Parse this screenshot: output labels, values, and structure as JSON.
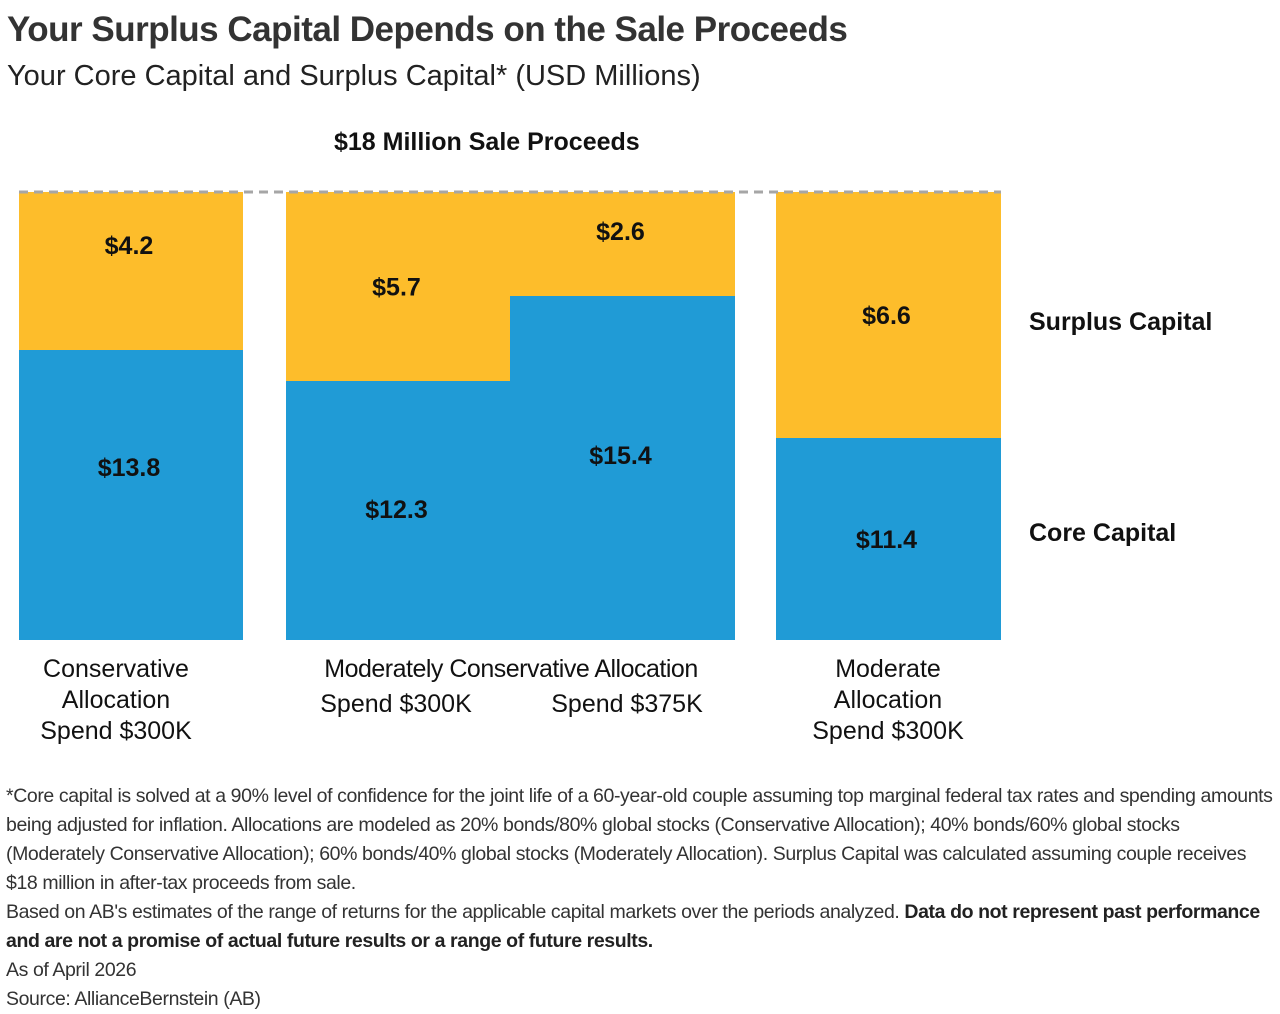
{
  "title": "Your Surplus Capital Depends on the Sale Proceeds",
  "subtitle": "Your Core Capital and Surplus Capital* (USD Millions)",
  "colors": {
    "surplus": "#FDBD2B",
    "core": "#209BD6",
    "dash": "#A6A6A6"
  },
  "chart_data": {
    "type": "bar",
    "stacked": true,
    "annotation": "$18 Million Sale Proceeds",
    "total": 18,
    "categories": [
      "Conservative Allocation Spend $300K",
      "Moderately Conservative Allocation Spend $300K",
      "Moderately Conservative Allocation Spend $375K",
      "Moderate Allocation Spend $300K"
    ],
    "series": [
      {
        "name": "Core Capital",
        "values": [
          13.8,
          12.3,
          15.4,
          11.4
        ],
        "labels": [
          "$13.8",
          "$12.3",
          "$15.4",
          "$11.4"
        ]
      },
      {
        "name": "Surplus Capital",
        "values": [
          4.2,
          5.7,
          2.6,
          6.6
        ],
        "labels": [
          "$4.2",
          "$5.7",
          "$2.6",
          "$6.6"
        ]
      }
    ],
    "legend": {
      "surplus": "Surplus Capital",
      "core": "Core Capital",
      "placement": "right"
    },
    "category_labels": {
      "cons": [
        "Conservative",
        "Allocation",
        "Spend $300K"
      ],
      "modcons_title": "Moderately Conservative Allocation",
      "modcons_a": "Spend $300K",
      "modcons_b": "Spend $375K",
      "mod": [
        "Moderate",
        "Allocation",
        "Spend $300K"
      ]
    }
  },
  "footnote": {
    "p1": "*Core capital is solved at a 90% level of confidence for the joint life of a 60-year-old couple assuming top marginal federal tax rates and spending amounts being adjusted for inflation. Allocations are modeled as 20% bonds/80% global stocks (Conservative Allocation); 40% bonds/60% global stocks (Moderately Conservative Allocation); 60% bonds/40% global stocks (Moderately Allocation). Surplus Capital was calculated assuming couple receives $18 million in after-tax proceeds from sale.",
    "p2": "Based on AB's estimates of the range of returns for the applicable capital markets over the periods analyzed. ",
    "p2_bold": "Data do not represent past performance and are not a promise of actual future results or a range of future results.",
    "as_of": "As of April 2026",
    "source": "Source: AllianceBernstein (AB)"
  }
}
